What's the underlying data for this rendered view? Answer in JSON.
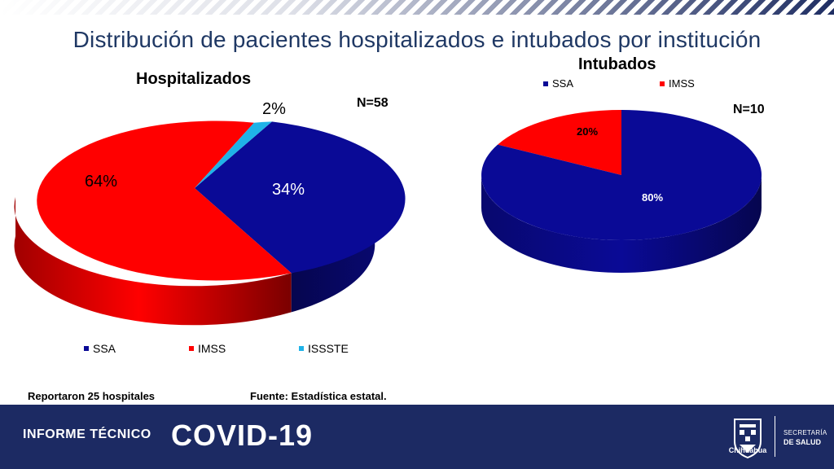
{
  "header": {
    "title": "Distribución  de  pacientes  hospitalizados  e  intubados  por  institución"
  },
  "chart_data": [
    {
      "type": "pie",
      "title": "Hospitalizados",
      "n_label": "N=58",
      "categories": [
        "SSA",
        "IMSS",
        "ISSSTE"
      ],
      "values": [
        34,
        64,
        2
      ],
      "labels": [
        "34%",
        "64%",
        "2%"
      ],
      "colors": [
        "#0a0a96",
        "#ff0000",
        "#1fb3e8"
      ],
      "legend_position": "bottom"
    },
    {
      "type": "pie",
      "title": "Intubados",
      "n_label": "N=10",
      "categories": [
        "SSA",
        "IMSS"
      ],
      "values": [
        80,
        20
      ],
      "labels": [
        "80%",
        "20%"
      ],
      "colors": [
        "#0a0a96",
        "#ff0000"
      ],
      "legend_position": "top"
    }
  ],
  "notes": {
    "hospitals": "Reportaron 25 hospitales",
    "source": "Fuente: Estadística estatal."
  },
  "footer": {
    "label1": "INFORME TÉCNICO",
    "label2": "COVID-19",
    "logo_text": "Chihuahua",
    "secretaria": "SECRETARÍA",
    "de_salud": "DE SALUD",
    "logo_icon": "state-shield-icon"
  }
}
